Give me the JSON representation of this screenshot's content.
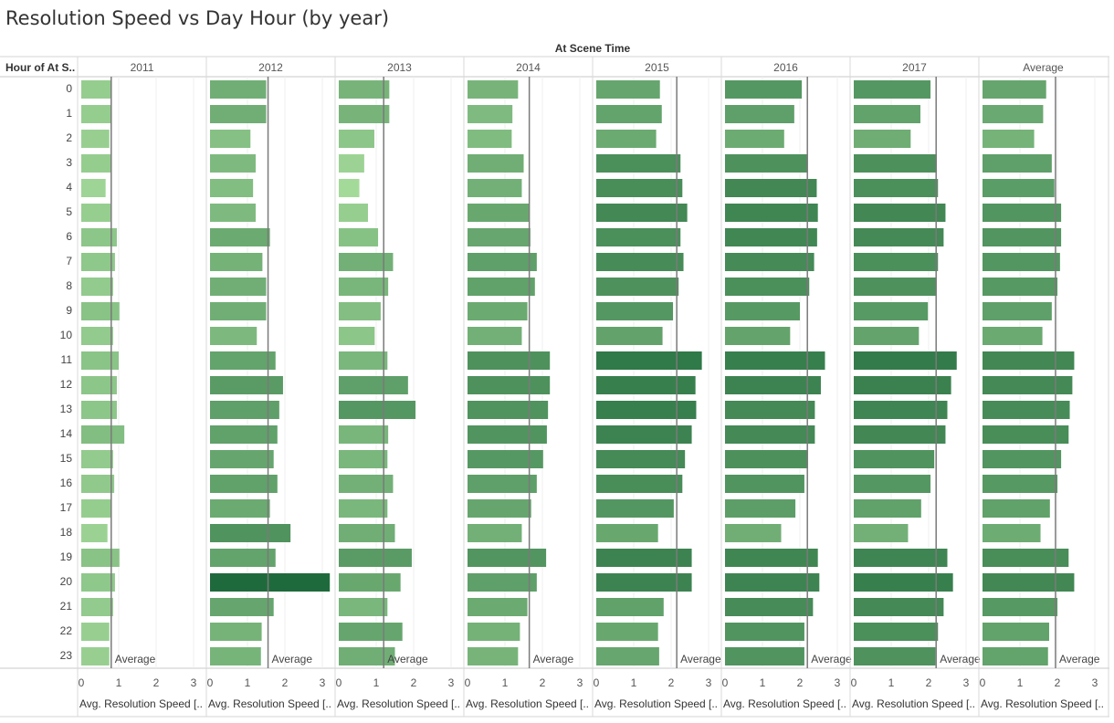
{
  "title": "Resolution Speed vs Day Hour (by year)",
  "chart_data": {
    "type": "bar",
    "orientation": "horizontal",
    "column_header": "At Scene Time",
    "row_header": "Hour of At S..",
    "categories": [
      "0",
      "1",
      "2",
      "3",
      "4",
      "5",
      "6",
      "7",
      "8",
      "9",
      "10",
      "11",
      "12",
      "13",
      "14",
      "15",
      "16",
      "17",
      "18",
      "19",
      "20",
      "21",
      "22",
      "23"
    ],
    "x_ticks": [
      "0",
      "1",
      "2",
      "3"
    ],
    "xlim": [
      0,
      3.2
    ],
    "xlabel": "Avg. Resolution Speed [..",
    "reference_line_label": "Average",
    "color_scale": [
      "#a8dd9c",
      "#1f6a3c"
    ],
    "grid": "vertical",
    "series": [
      {
        "name": "2011",
        "average": 0.8,
        "values": [
          0.8,
          0.8,
          0.75,
          0.8,
          0.65,
          0.78,
          0.95,
          0.9,
          0.85,
          1.02,
          0.85,
          1.0,
          0.95,
          0.95,
          1.15,
          0.85,
          0.88,
          0.8,
          0.7,
          1.02,
          0.9,
          0.85,
          0.75,
          0.75
        ]
      },
      {
        "name": "2012",
        "average": 1.55,
        "values": [
          1.5,
          1.5,
          1.08,
          1.22,
          1.15,
          1.22,
          1.6,
          1.4,
          1.5,
          1.5,
          1.25,
          1.75,
          1.95,
          1.85,
          1.8,
          1.7,
          1.8,
          1.6,
          2.15,
          1.75,
          3.2,
          1.7,
          1.38,
          1.36
        ]
      },
      {
        "name": "2013",
        "average": 1.2,
        "values": [
          1.35,
          1.35,
          0.95,
          0.68,
          0.55,
          0.78,
          1.05,
          1.45,
          1.32,
          1.12,
          0.96,
          1.3,
          1.85,
          2.05,
          1.32,
          1.3,
          1.45,
          1.3,
          1.5,
          1.95,
          1.65,
          1.3,
          1.7,
          1.5
        ]
      },
      {
        "name": "2014",
        "average": 1.65,
        "values": [
          1.35,
          1.2,
          1.18,
          1.5,
          1.45,
          1.65,
          1.68,
          1.85,
          1.8,
          1.6,
          1.45,
          2.2,
          2.2,
          2.15,
          2.12,
          2.02,
          1.85,
          1.7,
          1.45,
          2.1,
          1.85,
          1.6,
          1.4,
          1.35
        ]
      },
      {
        "name": "2015",
        "average": 2.15,
        "values": [
          1.7,
          1.75,
          1.6,
          2.25,
          2.3,
          2.43,
          2.25,
          2.33,
          2.2,
          2.05,
          1.77,
          2.82,
          2.65,
          2.67,
          2.55,
          2.37,
          2.3,
          2.07,
          1.65,
          2.55,
          2.55,
          1.8,
          1.65,
          1.68
        ]
      },
      {
        "name": "2016",
        "average": 2.2,
        "values": [
          2.05,
          1.85,
          1.58,
          2.2,
          2.45,
          2.48,
          2.46,
          2.38,
          2.25,
          2.0,
          1.74,
          2.67,
          2.56,
          2.4,
          2.4,
          2.22,
          2.12,
          1.88,
          1.5,
          2.48,
          2.52,
          2.35,
          2.12,
          2.12
        ]
      },
      {
        "name": "2017",
        "average": 2.2,
        "values": [
          2.05,
          1.78,
          1.52,
          2.22,
          2.25,
          2.45,
          2.4,
          2.25,
          2.2,
          1.98,
          1.74,
          2.75,
          2.6,
          2.5,
          2.45,
          2.15,
          2.05,
          1.8,
          1.45,
          2.5,
          2.65,
          2.4,
          2.25,
          2.18
        ]
      },
      {
        "name": "Average",
        "average": 1.95,
        "values": [
          1.7,
          1.62,
          1.38,
          1.85,
          1.92,
          2.1,
          2.1,
          2.07,
          2.0,
          1.85,
          1.6,
          2.45,
          2.4,
          2.33,
          2.3,
          2.1,
          2.0,
          1.8,
          1.55,
          2.3,
          2.45,
          2.0,
          1.78,
          1.75
        ]
      }
    ]
  }
}
